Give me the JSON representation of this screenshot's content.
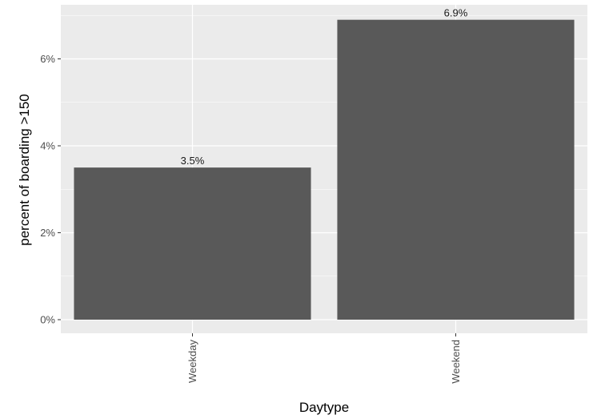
{
  "chart_data": {
    "type": "bar",
    "categories": [
      "Weekday",
      "Weekend"
    ],
    "values": [
      3.5,
      6.9
    ],
    "data_labels": [
      "3.5%",
      "6.9%"
    ],
    "xlabel": "Daytype",
    "ylabel": "percent of boarding >150",
    "ylim": [
      0,
      7.25
    ],
    "yticks": [
      0,
      2,
      4,
      6
    ],
    "ytick_labels": [
      "0%",
      "2%",
      "4%",
      "6%"
    ],
    "grid": true,
    "legend": "none",
    "colors": {
      "bar": "#595959",
      "panel": "#ebebeb",
      "grid": "#ffffff"
    }
  }
}
